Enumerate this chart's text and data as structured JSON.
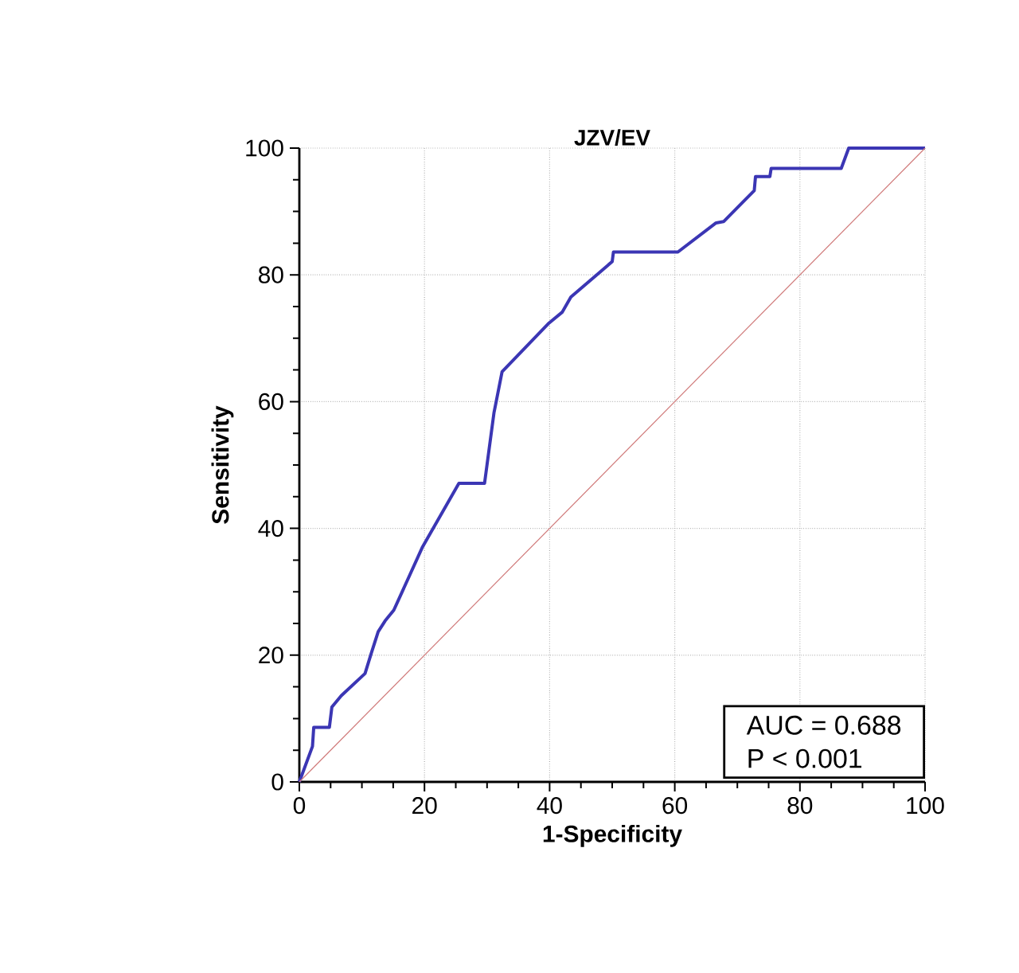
{
  "chart_data": {
    "type": "line",
    "title": "JZV/EV",
    "xlabel": "1-Specificity",
    "ylabel": "Sensitivity",
    "xlim": [
      0,
      100
    ],
    "ylim": [
      0,
      100
    ],
    "xticks": [
      0,
      20,
      40,
      60,
      80,
      100
    ],
    "yticks": [
      0,
      20,
      40,
      60,
      80,
      100
    ],
    "grid": true,
    "annotations": [
      "AUC = 0.688",
      "P < 0.001"
    ],
    "series": [
      {
        "color": "#3b36b4",
        "x": [
          0,
          2.1,
          2.3,
          4.8,
          5.2,
          6.7,
          10.5,
          11.5,
          12.6,
          13.7,
          15.1,
          19.7,
          25.5,
          29.6,
          31.1,
          32.4,
          39.9,
          42,
          43.4,
          50,
          50.2,
          60.5,
          66.6,
          67.8,
          72.7,
          72.9,
          75.2,
          75.4,
          86.6,
          87.8,
          100
        ],
        "values": [
          0,
          5.6,
          8.6,
          8.6,
          11.8,
          13.6,
          17.1,
          20.3,
          23.7,
          25.4,
          27.1,
          37.1,
          47.1,
          47.1,
          58.2,
          64.7,
          72.4,
          74.1,
          76.5,
          82.1,
          83.6,
          83.6,
          88.2,
          88.4,
          93.3,
          95.5,
          95.5,
          96.8,
          96.8,
          100,
          100
        ]
      },
      {
        "color": "#d07a7a",
        "x": [
          0,
          100
        ],
        "values": [
          0,
          100
        ]
      }
    ]
  }
}
